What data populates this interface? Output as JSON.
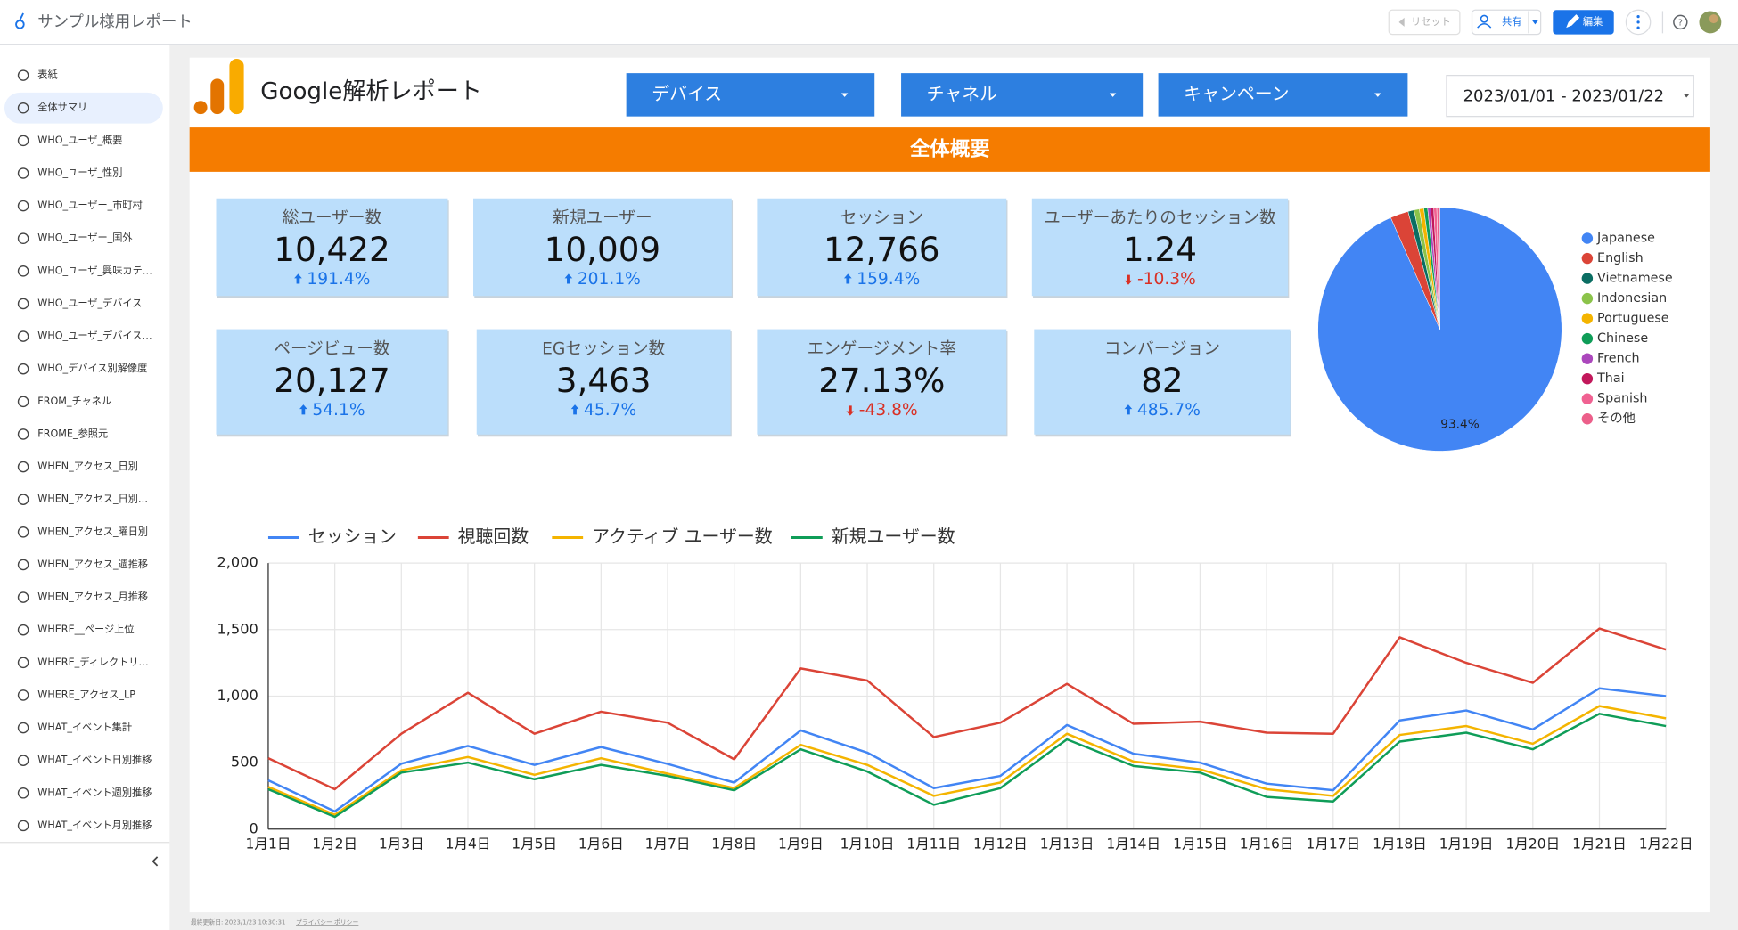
{
  "app": {
    "title": "サンプル様用レポート",
    "buttons": {
      "reset": "リセット",
      "share": "共有",
      "edit": "編集"
    }
  },
  "sidebar": {
    "items": [
      "表紙",
      "全体サマリ",
      "WHO_ユーザ_概要",
      "WHO_ユーザ_性別",
      "WHO_ユーザー_市町村",
      "WHO_ユーザー_国外",
      "WHO_ユーザ_興味カテ…",
      "WHO_ユーザ_デバイス",
      "WHO_ユーザ_デバイス…",
      "WHO_デバイス別解像度",
      "FROM_チャネル",
      "FROME_参照元",
      "WHEN_アクセス_日別",
      "WHEN_アクセス_日別…",
      "WHEN_アクセス_曜日別",
      "WHEN_アクセス_週推移",
      "WHEN_アクセス_月推移",
      "WHERE__ページ上位",
      "WHERE_ディレクトリ…",
      "WHERE_アクセス_LP",
      "WHAT_イベント集計",
      "WHAT_イベント日別推移",
      "WHAT_イベント週別推移",
      "WHAT_イベント月別推移"
    ],
    "active": 1
  },
  "report": {
    "title": "Google解析レポート",
    "filters": [
      "デバイス",
      "チャネル",
      "キャンペーン"
    ],
    "date_range": "2023/01/01 - 2023/01/22",
    "section": "全体概要"
  },
  "kpis": [
    {
      "label": "総ユーザー数",
      "value": "10,422",
      "change": "191.4%",
      "trend": "up"
    },
    {
      "label": "新規ユーザー",
      "value": "10,009",
      "change": "201.1%",
      "trend": "up"
    },
    {
      "label": "セッション",
      "value": "12,766",
      "change": "159.4%",
      "trend": "up"
    },
    {
      "label": "ユーザーあたりのセッション数",
      "value": "1.24",
      "change": "-10.3%",
      "trend": "down"
    },
    {
      "label": "ページビュー数",
      "value": "20,127",
      "change": "54.1%",
      "trend": "up"
    },
    {
      "label": "EGセッション数",
      "value": "3,463",
      "change": "45.7%",
      "trend": "up"
    },
    {
      "label": "エンゲージメント率",
      "value": "27.13%",
      "change": "-43.8%",
      "trend": "down"
    },
    {
      "label": "コンバージョン",
      "value": "82",
      "change": "485.7%",
      "trend": "up"
    }
  ],
  "chart_data": [
    {
      "type": "pie",
      "categories": [
        "Japanese",
        "English",
        "Vietnamese",
        "Indonesian",
        "Portuguese",
        "Chinese",
        "French",
        "Thai",
        "Spanish",
        "その他"
      ],
      "values": [
        93.4,
        2.4,
        0.8,
        0.7,
        0.6,
        0.5,
        0.4,
        0.4,
        0.4,
        0.4
      ],
      "value_labels": [
        "93.4%",
        null,
        null,
        null,
        null,
        null,
        null,
        null,
        null,
        null
      ],
      "colors": [
        "#4285f4",
        "#db4437",
        "#0b6e63",
        "#8bc34a",
        "#f4b400",
        "#0f9d58",
        "#ab47bc",
        "#c2185b",
        "#f06292",
        "#ec5f8a"
      ],
      "legend": "right"
    },
    {
      "type": "line",
      "categories": [
        "1月1日",
        "1月2日",
        "1月3日",
        "1月4日",
        "1月5日",
        "1月6日",
        "1月7日",
        "1月8日",
        "1月9日",
        "1月10日",
        "1月11日",
        "1月12日",
        "1月13日",
        "1月14日",
        "1月15日",
        "1月16日",
        "1月17日",
        "1月18日",
        "1月19日",
        "1月20日",
        "1月21日",
        "1月22日"
      ],
      "series": [
        {
          "name": "セッション",
          "color": "#4285f4",
          "values": [
            367,
            133,
            492,
            625,
            483,
            617,
            490,
            350,
            742,
            575,
            308,
            400,
            783,
            567,
            500,
            342,
            292,
            817,
            892,
            750,
            1058,
            1000
          ]
        },
        {
          "name": "視聴回数",
          "color": "#db4437",
          "values": [
            533,
            300,
            717,
            1025,
            717,
            883,
            800,
            525,
            1208,
            1117,
            692,
            800,
            1092,
            792,
            808,
            725,
            717,
            1442,
            1250,
            1100,
            1508,
            1350
          ]
        },
        {
          "name": "アクティブ ユーザー数",
          "color": "#f4b400",
          "values": [
            317,
            108,
            442,
            542,
            408,
            533,
            417,
            308,
            633,
            483,
            250,
            350,
            717,
            508,
            450,
            300,
            250,
            708,
            775,
            642,
            925,
            833
          ]
        },
        {
          "name": "新規ユーザー数",
          "color": "#0f9d58",
          "values": [
            300,
            92,
            425,
            500,
            375,
            483,
            400,
            292,
            600,
            433,
            183,
            308,
            675,
            475,
            425,
            242,
            208,
            658,
            725,
            600,
            867,
            775
          ]
        }
      ],
      "ylim": [
        0,
        2000
      ],
      "yticks": [
        0,
        500,
        {
          "value": 1000,
          "label": "1,000"
        },
        {
          "value": 1500,
          "label": "1,500"
        },
        {
          "value": 2000,
          "label": "2,000"
        }
      ],
      "grid": true,
      "legend": "top"
    }
  ],
  "footer": {
    "updated": "最終更新日: 2023/1/23 10:30:31",
    "privacy": "プライバシー ポリシー"
  }
}
